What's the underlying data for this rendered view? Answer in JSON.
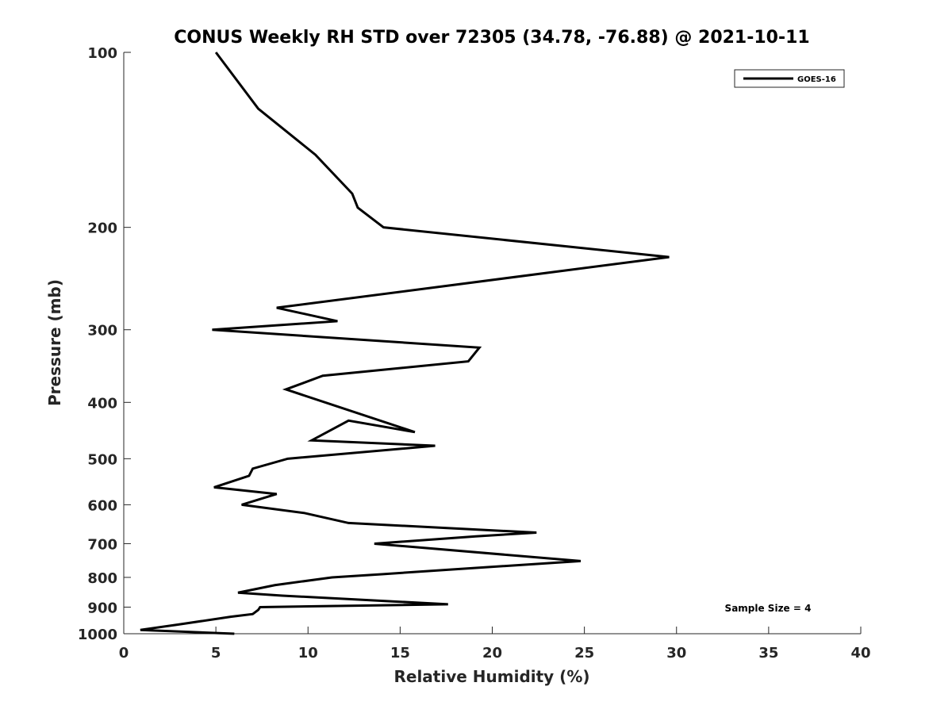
{
  "chart_data": {
    "type": "line",
    "title": "CONUS Weekly RH STD over 72305 (34.78, -76.88) @ 2021-10-11",
    "xlabel": "Relative Humidity (%)",
    "ylabel": "Pressure (mb)",
    "xlim": [
      0,
      40
    ],
    "ylim": [
      100,
      1000
    ],
    "y_scale": "log",
    "y_inverted": true,
    "grid": false,
    "legend_position": "top-right",
    "xticks": [
      "0",
      "5",
      "10",
      "15",
      "20",
      "25",
      "30",
      "35",
      "40"
    ],
    "xtick_values": [
      0,
      5,
      10,
      15,
      20,
      25,
      30,
      35,
      40
    ],
    "yticks": [
      "100",
      "200",
      "300",
      "400",
      "500",
      "600",
      "700",
      "800",
      "900",
      "1000"
    ],
    "ytick_values": [
      100,
      200,
      300,
      400,
      500,
      600,
      700,
      800,
      900,
      1000
    ],
    "series": [
      {
        "name": "GOES-16",
        "color": "#000000",
        "x": [
          5.0,
          7.3,
          10.4,
          12.4,
          12.7,
          14.1,
          29.6,
          8.3,
          11.6,
          4.8,
          19.3,
          18.7,
          10.8,
          8.8,
          15.8,
          12.2,
          10.2,
          16.9,
          8.9,
          7.0,
          6.8,
          4.9,
          8.3,
          6.4,
          9.8,
          12.2,
          22.4,
          19.1,
          13.6,
          24.8,
          17.9,
          14.0,
          11.3,
          8.2,
          6.2,
          8.6,
          17.6,
          7.4,
          7.3,
          7.0,
          5.8,
          2.9,
          0.9,
          6.0
        ],
        "y": [
          100,
          125,
          150,
          175,
          185,
          200,
          225,
          275,
          290,
          300,
          322,
          340,
          360,
          380,
          450,
          430,
          465,
          475,
          500,
          520,
          535,
          560,
          575,
          600,
          620,
          645,
          670,
          680,
          700,
          750,
          775,
          790,
          800,
          825,
          850,
          860,
          890,
          900,
          910,
          925,
          935,
          965,
          985,
          1000
        ]
      }
    ],
    "annotations": [
      {
        "text": "Sample Size = 4",
        "x": 36,
        "y": 900
      }
    ]
  }
}
